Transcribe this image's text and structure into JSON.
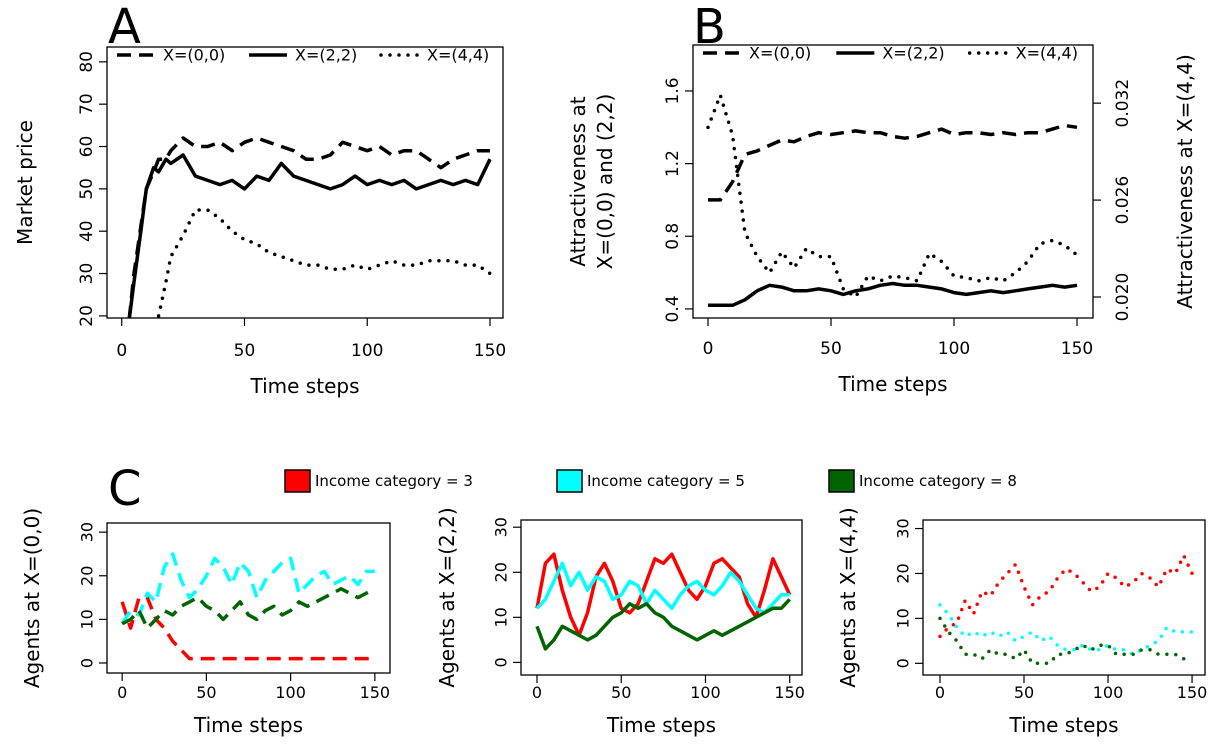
{
  "chart_data": [
    {
      "type": "line",
      "panel_label": "A",
      "xlabel": "Time steps",
      "ylabel": "Market price",
      "x": [
        3,
        5,
        8,
        10,
        13,
        15,
        18,
        20,
        25,
        30,
        35,
        40,
        45,
        50,
        55,
        60,
        65,
        70,
        75,
        80,
        85,
        90,
        95,
        100,
        105,
        110,
        115,
        120,
        125,
        130,
        135,
        140,
        145,
        150
      ],
      "xlim": [
        -6,
        155.3
      ],
      "xticks": [
        0,
        50,
        100,
        150
      ],
      "ylim": [
        19.5,
        83.5
      ],
      "yticks": [
        20,
        30,
        40,
        50,
        60,
        70,
        80
      ],
      "legend": "top",
      "series": [
        {
          "name": "X=(0,0)",
          "color": "#000000",
          "style": "dashed",
          "values": [
            19,
            30,
            42,
            50,
            54,
            57,
            57,
            59,
            62,
            60,
            60,
            61,
            59,
            61,
            62,
            61,
            60,
            59,
            57,
            57,
            58,
            61,
            60,
            59,
            60,
            58,
            59,
            59,
            57,
            55,
            57,
            58,
            59,
            59
          ]
        },
        {
          "name": "X=(2,2)",
          "color": "#000000",
          "style": "solid",
          "values": [
            19,
            28,
            41,
            50,
            55,
            54,
            57,
            56,
            58,
            53,
            52,
            51,
            52,
            50,
            53,
            52,
            56,
            53,
            52,
            51,
            50,
            51,
            53,
            51,
            52,
            51,
            52,
            50,
            51,
            52,
            51,
            52,
            51,
            57
          ]
        },
        {
          "name": "X=(4,4)",
          "color": "#000000",
          "style": "dotted",
          "values": [
            null,
            null,
            null,
            null,
            null,
            20,
            28,
            34,
            39,
            45,
            45,
            43,
            40,
            38,
            37,
            35,
            34,
            33,
            32,
            32,
            31,
            31,
            32,
            31,
            32,
            33,
            32,
            32,
            33,
            33,
            33,
            32,
            32,
            30
          ]
        }
      ]
    },
    {
      "type": "line",
      "panel_label": "B",
      "xlabel": "Time steps",
      "ylabel": [
        "Attractiveness at",
        "X=(0,0) and (2,2)"
      ],
      "y2label": "Attractiveness at X=(4,4)",
      "x": [
        0,
        5,
        10,
        15,
        20,
        25,
        30,
        35,
        40,
        45,
        50,
        55,
        60,
        65,
        70,
        75,
        80,
        85,
        90,
        95,
        100,
        105,
        110,
        115,
        120,
        125,
        130,
        135,
        140,
        145,
        150
      ],
      "xlim": [
        -6.1,
        156.5
      ],
      "xticks": [
        0,
        50,
        100,
        150
      ],
      "ylim": [
        0.35,
        1.853
      ],
      "yticks": [
        0.4,
        0.8,
        1.2,
        1.6
      ],
      "y2lim": [
        0.0187,
        0.0356
      ],
      "y2ticks": [
        {
          "value": 0.02,
          "label": "0.020"
        },
        0.026,
        0.032
      ],
      "legend": "top",
      "series": [
        {
          "name": "X=(0,0)",
          "color": "#000000",
          "style": "dashed",
          "values": [
            1.0,
            1.0,
            1.1,
            1.25,
            1.27,
            1.3,
            1.33,
            1.32,
            1.35,
            1.37,
            1.36,
            1.37,
            1.38,
            1.37,
            1.37,
            1.35,
            1.34,
            1.35,
            1.37,
            1.39,
            1.36,
            1.37,
            1.37,
            1.36,
            1.37,
            1.36,
            1.37,
            1.37,
            1.39,
            1.41,
            1.4
          ]
        },
        {
          "name": "X=(2,2)",
          "color": "#000000",
          "style": "solid",
          "values": [
            0.42,
            0.42,
            0.42,
            0.45,
            0.5,
            0.53,
            0.52,
            0.5,
            0.5,
            0.51,
            0.5,
            0.48,
            0.5,
            0.51,
            0.53,
            0.54,
            0.53,
            0.53,
            0.52,
            0.51,
            0.49,
            0.48,
            0.49,
            0.5,
            0.49,
            0.5,
            0.51,
            0.52,
            0.53,
            0.52,
            0.53
          ]
        },
        {
          "name": "X=(4,4)",
          "color": "#000000",
          "style": "dotted",
          "axis": "y2",
          "values": [
            0.0305,
            0.0325,
            0.03,
            0.024,
            0.0225,
            0.0215,
            0.0228,
            0.0218,
            0.023,
            0.0225,
            0.0225,
            0.0205,
            0.02,
            0.0213,
            0.021,
            0.0213,
            0.0212,
            0.021,
            0.0227,
            0.0222,
            0.0213,
            0.0212,
            0.021,
            0.0212,
            0.021,
            0.0215,
            0.0222,
            0.0233,
            0.0235,
            0.0232,
            0.0226
          ]
        }
      ]
    },
    {
      "type": "line",
      "panel_label": "C",
      "xlabel": "Time steps",
      "ylabel": "Agents at X=(0,0)",
      "x": [
        0,
        5,
        10,
        15,
        20,
        25,
        30,
        35,
        40,
        45,
        50,
        55,
        60,
        65,
        70,
        75,
        80,
        85,
        90,
        95,
        100,
        105,
        110,
        115,
        120,
        125,
        130,
        135,
        140,
        145,
        150
      ],
      "xlim": [
        -9,
        159
      ],
      "xticks": [
        0,
        50,
        100,
        150
      ],
      "ylim": [
        -2.3,
        32.1
      ],
      "yticks": [
        0,
        10,
        20,
        30
      ],
      "legend": "above",
      "series": [
        {
          "name": "Income category = 3",
          "color": "#ff0000",
          "style": "dashed",
          "values": [
            14,
            8,
            15,
            15,
            10,
            8,
            5,
            3,
            1,
            1,
            1,
            1,
            1,
            1,
            1,
            1,
            1,
            1,
            1,
            1,
            1,
            1,
            1,
            1,
            1,
            1,
            1,
            1,
            1,
            1,
            1
          ]
        },
        {
          "name": "Income category = 5",
          "color": "#00ffff",
          "style": "dashed",
          "values": [
            9,
            12,
            11,
            16,
            14,
            22,
            25,
            19,
            15,
            17,
            20,
            24,
            22,
            18,
            23,
            21,
            15,
            19,
            21,
            23,
            24,
            16,
            18,
            20,
            21,
            18,
            19,
            20,
            18,
            21,
            21
          ]
        },
        {
          "name": "Income category = 8",
          "color": "#006400",
          "style": "dashed",
          "values": [
            9,
            10,
            12,
            8,
            10,
            12,
            11,
            13,
            14,
            15,
            13,
            12,
            10,
            12,
            14,
            11,
            10,
            12,
            13,
            11,
            12,
            14,
            13,
            14,
            15,
            16,
            17,
            16,
            15,
            16,
            17
          ]
        }
      ]
    },
    {
      "type": "line",
      "xlabel": "Time steps",
      "ylabel": "Agents at X=(2,2)",
      "x": [
        0,
        5,
        10,
        15,
        20,
        25,
        30,
        35,
        40,
        45,
        50,
        55,
        60,
        65,
        70,
        75,
        80,
        85,
        90,
        95,
        100,
        105,
        110,
        115,
        120,
        125,
        130,
        135,
        140,
        145,
        150
      ],
      "xlim": [
        -9.5,
        157.3
      ],
      "xticks": [
        0,
        50,
        100,
        150
      ],
      "ylim": [
        -2.8,
        31.6
      ],
      "yticks": [
        0,
        10,
        20,
        30
      ],
      "series": [
        {
          "name": "Income category = 3",
          "color": "#ff0000",
          "style": "solid",
          "values": [
            12,
            22,
            24,
            16,
            10,
            6,
            11,
            19,
            22,
            18,
            12,
            11,
            13,
            18,
            23,
            22,
            24,
            20,
            16,
            14,
            17,
            22,
            23,
            21,
            19,
            13,
            10,
            16,
            23,
            19,
            15
          ]
        },
        {
          "name": "Income category = 5",
          "color": "#00ffff",
          "style": "solid",
          "values": [
            12,
            14,
            18,
            22,
            17,
            20,
            16,
            19,
            18,
            14,
            15,
            18,
            17,
            13,
            16,
            14,
            12,
            15,
            17,
            18,
            16,
            15,
            17,
            20,
            18,
            15,
            12,
            11,
            13,
            15,
            15
          ]
        },
        {
          "name": "Income category = 8",
          "color": "#006400",
          "style": "solid",
          "values": [
            8,
            3,
            5,
            8,
            7,
            6,
            5,
            6,
            8,
            10,
            11,
            13,
            12,
            13,
            11,
            10,
            8,
            7,
            6,
            5,
            6,
            7,
            6,
            7,
            8,
            9,
            10,
            11,
            12,
            12,
            14
          ]
        }
      ]
    },
    {
      "type": "line",
      "xlabel": "Time steps",
      "ylabel": "Agents at X=(4,4)",
      "x": [
        0,
        5,
        10,
        15,
        20,
        25,
        30,
        35,
        40,
        45,
        50,
        55,
        60,
        65,
        70,
        75,
        80,
        85,
        90,
        95,
        100,
        105,
        110,
        115,
        120,
        125,
        130,
        135,
        140,
        145,
        150
      ],
      "xlim": [
        -10.1,
        157.7
      ],
      "xticks": [
        0,
        50,
        100,
        150
      ],
      "ylim": [
        -2.6,
        31.9
      ],
      "yticks": [
        0,
        10,
        20,
        30
      ],
      "series": [
        {
          "name": "Income category = 3",
          "color": "#ff0000",
          "style": "dotted",
          "values": [
            6,
            8,
            9,
            14,
            11,
            16,
            15,
            18,
            20,
            22,
            17,
            13,
            15,
            16,
            19,
            21,
            20,
            18,
            16,
            17,
            20,
            19,
            17,
            18,
            20,
            19,
            17,
            21,
            20,
            24,
            20
          ]
        },
        {
          "name": "Income category = 5",
          "color": "#00ffff",
          "style": "dotted",
          "values": [
            13,
            11,
            8,
            6,
            7,
            6,
            7,
            6,
            7,
            5,
            6,
            7,
            5,
            6,
            4,
            3,
            3,
            4,
            3,
            3,
            4,
            3,
            3,
            2,
            3,
            4,
            5,
            8,
            7,
            7,
            7
          ]
        },
        {
          "name": "Income category = 8",
          "color": "#006400",
          "style": "dotted",
          "values": [
            10,
            7,
            5,
            2,
            2,
            1,
            3,
            2,
            2,
            1,
            3,
            0,
            0,
            0,
            2,
            2,
            3,
            4,
            3,
            4,
            4,
            2,
            2,
            2,
            3,
            3,
            2,
            2,
            2,
            1,
            1
          ]
        }
      ]
    }
  ]
}
